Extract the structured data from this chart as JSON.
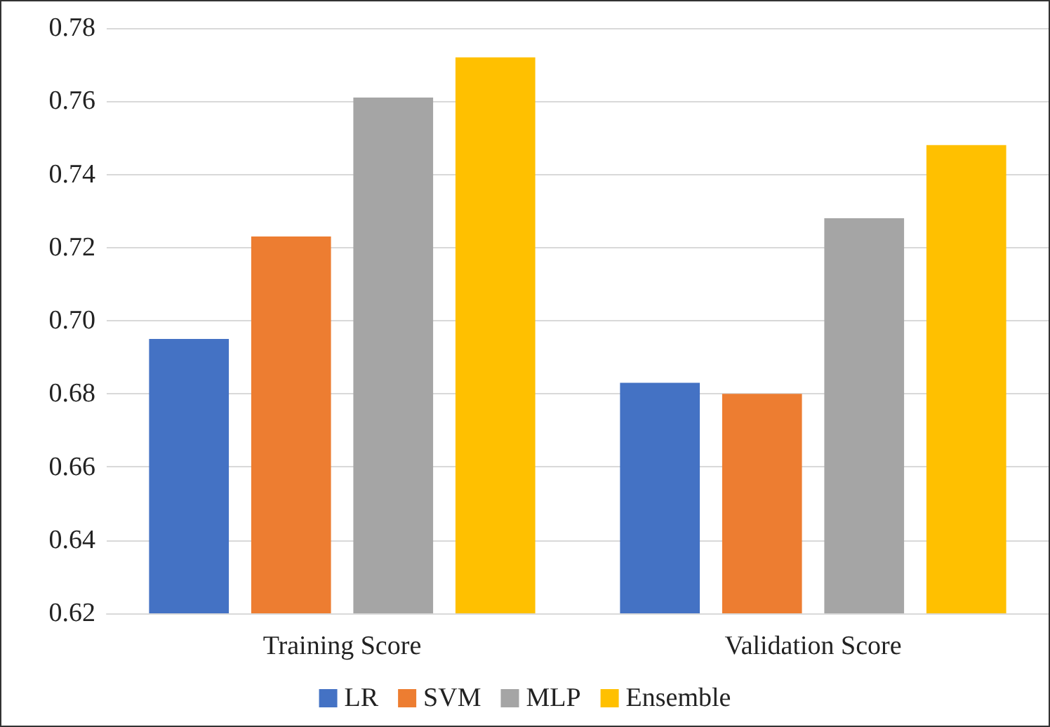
{
  "chart_data": {
    "type": "bar",
    "categories": [
      "Training Score",
      "Validation Score"
    ],
    "series": [
      {
        "name": "LR",
        "color": "#4472c4",
        "values": [
          0.695,
          0.683
        ]
      },
      {
        "name": "SVM",
        "color": "#ed7d31",
        "values": [
          0.723,
          0.68
        ]
      },
      {
        "name": "MLP",
        "color": "#a5a5a5",
        "values": [
          0.761,
          0.728
        ]
      },
      {
        "name": "Ensemble",
        "color": "#ffc000",
        "values": [
          0.772,
          0.748
        ]
      }
    ],
    "ylim": [
      0.62,
      0.78
    ],
    "yticks": [
      0.62,
      0.64,
      0.66,
      0.68,
      {
        "value": 0.7,
        "label": "0.70"
      },
      0.72,
      0.74,
      0.76,
      0.78
    ],
    "grid": "y",
    "legend": "bottom"
  }
}
